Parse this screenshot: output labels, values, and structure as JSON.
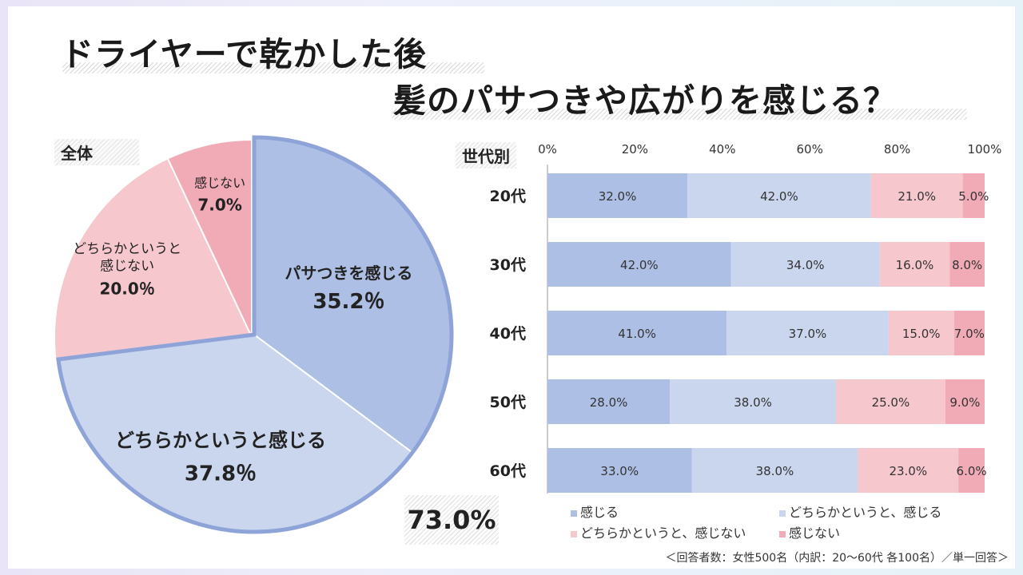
{
  "title_line1": "ドライヤーで乾かした後",
  "title_line2": "髪のパサつきや広がりを感じる？",
  "overall_label": "全体",
  "generation_label": "世代別",
  "positive_total": "73.0%",
  "footnote": "＜回答者数：女性500名（内訳：20〜60代 各100名）／単一回答＞",
  "colors": {
    "feel": "#aebfe5",
    "somewhat_feel": "#c9d6ee",
    "somewhat_not": "#f6c7cd",
    "not_feel": "#f0abb6",
    "outline": "#8ea4d8"
  },
  "chart_data": [
    {
      "type": "pie",
      "title": "全体",
      "slices": [
        {
          "name": "パサつきを感じる",
          "label_lines": [
            "パサつきを感じる"
          ],
          "value": 35.2,
          "value_label": "35.2％"
        },
        {
          "name": "どちらかというと感じる",
          "label_lines": [
            "どちらかというと感じる"
          ],
          "value": 37.8,
          "value_label": "37.8％"
        },
        {
          "name": "どちらかというと感じない",
          "label_lines": [
            "どちらかというと",
            "感じない"
          ],
          "value": 20.0,
          "value_label": "20.0％"
        },
        {
          "name": "感じない",
          "label_lines": [
            "感じない"
          ],
          "value": 7.0,
          "value_label": "7.0%"
        }
      ]
    },
    {
      "type": "bar",
      "orientation": "horizontal",
      "stacked": true,
      "title": "世代別",
      "categories": [
        "20代",
        "30代",
        "40代",
        "50代",
        "60代"
      ],
      "xlim": [
        0,
        100
      ],
      "x_ticks": [
        "0%",
        "20%",
        "40%",
        "60%",
        "80%",
        "100%"
      ],
      "legend_position": "bottom",
      "series": [
        {
          "name": "感じる",
          "values": [
            32.0,
            42.0,
            41.0,
            28.0,
            33.0
          ],
          "labels": [
            "32.0%",
            "42.0%",
            "41.0%",
            "28.0%",
            "33.0%"
          ]
        },
        {
          "name": "どちらかというと、感じる",
          "values": [
            42.0,
            34.0,
            37.0,
            38.0,
            38.0
          ],
          "labels": [
            "42.0%",
            "34.0%",
            "37.0%",
            "38.0%",
            "38.0%"
          ]
        },
        {
          "name": "どちらかというと、感じない",
          "values": [
            21.0,
            16.0,
            15.0,
            25.0,
            23.0
          ],
          "labels": [
            "21.0%",
            "16.0%",
            "15.0%",
            "25.0%",
            "23.0%"
          ]
        },
        {
          "name": "感じない",
          "values": [
            5.0,
            8.0,
            7.0,
            9.0,
            6.0
          ],
          "labels": [
            "5.0%",
            "8.0%",
            "7.0%",
            "9.0%",
            "6.0%"
          ]
        }
      ]
    }
  ]
}
